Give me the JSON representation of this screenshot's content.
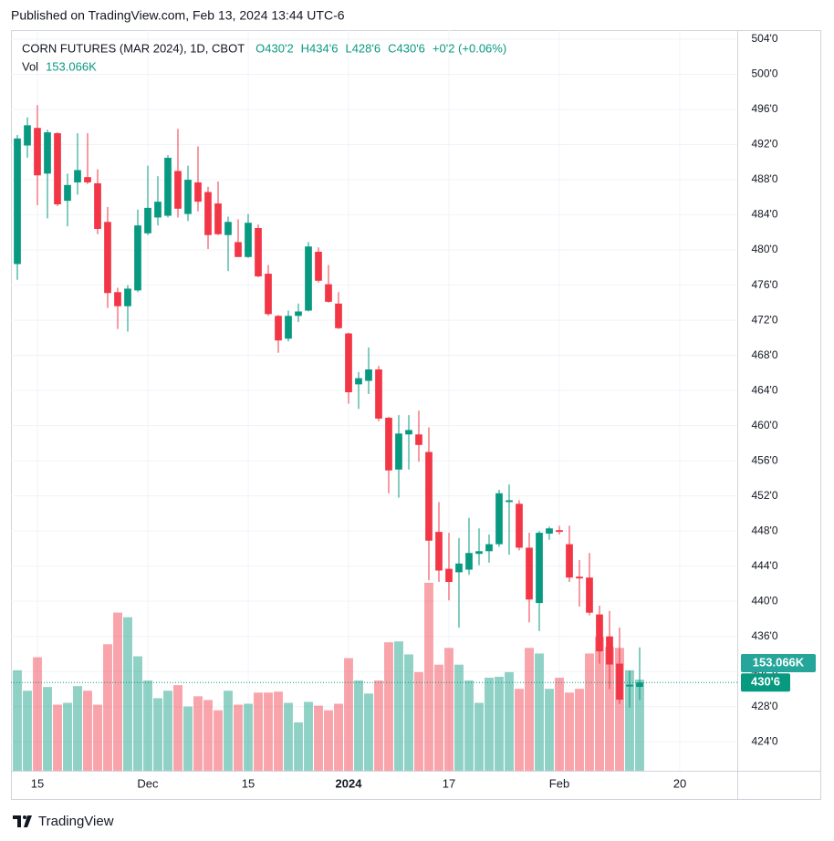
{
  "published": "Published on TradingView.com, Feb 13, 2024 13:44 UTC-6",
  "brand": "TradingView",
  "chart_data": {
    "type": "candlestick",
    "symbol": "CORN FUTURES (MAR 2024), 1D, CBOT",
    "ohlc_legend": [
      "O430'2",
      "H434'6",
      "L428'6",
      "C430'6",
      "+0'2 (+0.06%)"
    ],
    "volume_title": "Vol",
    "last_volume_label": "153.066K",
    "last_close_label": "430'6",
    "up_color": "#089981",
    "down_color": "#f23645",
    "open": [
      478.4,
      491.9,
      493.9,
      488.7,
      493.3,
      485.6,
      487.7,
      488.3,
      487.6,
      483.2,
      475.2,
      473.6,
      475.4,
      481.9,
      483.7,
      483.9,
      489.0,
      484.1,
      487.7,
      486.6,
      485.3,
      481.7,
      480.9,
      479.2,
      482.5,
      477.3,
      472.5,
      469.9,
      472.5,
      473.1,
      479.8,
      476.1,
      473.9,
      470.5,
      464.7,
      465.1,
      466.4,
      460.9,
      455.0,
      459.0,
      459.0,
      457.0,
      447.9,
      443.7,
      443.3,
      443.6,
      445.4,
      445.7,
      446.5,
      451.3,
      451.1,
      446.1,
      439.8,
      447.7,
      448.1,
      446.5,
      442.8,
      442.7,
      438.5,
      436.0,
      432.9,
      430.3,
      430.25
    ],
    "high": [
      493.1,
      495.1,
      496.5,
      493.7,
      493.4,
      488.7,
      493.3,
      493.3,
      489.2,
      484.9,
      475.7,
      476.0,
      484.6,
      489.6,
      488.4,
      490.8,
      493.8,
      489.6,
      491.8,
      487.2,
      487.8,
      483.8,
      483.5,
      484.1,
      482.9,
      478.3,
      472.6,
      473.1,
      473.9,
      480.9,
      480.3,
      478.3,
      475.2,
      470.6,
      466.1,
      468.9,
      466.8,
      461.0,
      461.2,
      461.2,
      461.7,
      459.8,
      451.3,
      447.8,
      447.2,
      449.5,
      448.3,
      447.6,
      452.7,
      453.3,
      451.5,
      447.8,
      448.0,
      448.5,
      448.6,
      448.6,
      444.7,
      445.5,
      439.5,
      438.9,
      437.0,
      432.1,
      434.75
    ],
    "low": [
      476.6,
      490.5,
      485.1,
      483.6,
      485.0,
      482.7,
      486.3,
      487.5,
      481.8,
      473.4,
      471.0,
      470.7,
      475.2,
      481.7,
      482.8,
      483.7,
      483.7,
      483.3,
      484.4,
      480.1,
      481.7,
      477.6,
      479.2,
      479.1,
      476.9,
      472.5,
      468.3,
      469.6,
      471.8,
      473.0,
      476.3,
      474.0,
      471.0,
      462.5,
      461.9,
      463.6,
      460.5,
      452.3,
      451.8,
      455.0,
      455.9,
      442.4,
      442.2,
      440.1,
      437.0,
      443.0,
      444.1,
      444.4,
      446.2,
      445.3,
      445.8,
      437.6,
      436.6,
      447.0,
      447.6,
      442.2,
      439.4,
      438.4,
      432.9,
      430.0,
      428.3,
      427.9,
      428.75
    ],
    "close": [
      492.7,
      494.2,
      488.5,
      493.4,
      485.2,
      487.4,
      489.1,
      487.7,
      482.4,
      475.1,
      473.6,
      475.6,
      482.8,
      484.8,
      485.5,
      490.5,
      484.7,
      488.0,
      485.5,
      481.7,
      481.8,
      483.2,
      479.2,
      483.1,
      477.0,
      472.7,
      469.7,
      472.5,
      473.0,
      480.4,
      476.5,
      474.1,
      471.1,
      463.8,
      465.4,
      466.4,
      460.8,
      454.9,
      459.1,
      459.5,
      457.8,
      446.9,
      443.5,
      442.2,
      444.3,
      445.5,
      445.7,
      446.5,
      452.3,
      451.5,
      446.1,
      440.2,
      447.8,
      448.3,
      447.9,
      442.7,
      442.6,
      438.7,
      434.3,
      432.8,
      428.8,
      430.5,
      430.75
    ],
    "volume": [
      168700,
      134300,
      190600,
      140600,
      110900,
      114000,
      142100,
      134300,
      110900,
      212400,
      265500,
      257700,
      192100,
      151500,
      121800,
      134300,
      143700,
      107800,
      125000,
      118700,
      101500,
      134300,
      110900,
      112500,
      131200,
      131200,
      132800,
      114000,
      81200,
      115600,
      109300,
      101500,
      112500,
      189000,
      151500,
      129600,
      151500,
      215600,
      217100,
      195300,
      165600,
      315500,
      178100,
      206200,
      178100,
      151500,
      114000,
      156200,
      157800,
      165600,
      137500,
      206200,
      196800,
      137500,
      156200,
      131200,
      137500,
      196800,
      224900,
      207700,
      206200,
      168700,
      153066
    ],
    "xlim": [
      -0.636,
      71.727
    ],
    "xticks": [
      {
        "value": 2,
        "label": "15"
      },
      {
        "value": 13,
        "label": "Dec"
      },
      {
        "value": 23,
        "label": "15"
      },
      {
        "value": 33,
        "label": "2024",
        "bold": true
      },
      {
        "value": 43,
        "label": "17"
      },
      {
        "value": 54,
        "label": "Feb"
      },
      {
        "value": 66,
        "label": "20"
      }
    ],
    "ylim": [
      420.7,
      505.04
    ],
    "yticks": [
      {
        "value": 424,
        "label": "424'0"
      },
      {
        "value": 428,
        "label": "428'0"
      },
      {
        "value": 432,
        "label": "432'0"
      },
      {
        "value": 436,
        "label": "436'0"
      },
      {
        "value": 440,
        "label": "440'0"
      },
      {
        "value": 444,
        "label": "444'0"
      },
      {
        "value": 448,
        "label": "448'0"
      },
      {
        "value": 452,
        "label": "452'0"
      },
      {
        "value": 456,
        "label": "456'0"
      },
      {
        "value": 460,
        "label": "460'0"
      },
      {
        "value": 464,
        "label": "464'0"
      },
      {
        "value": 468,
        "label": "468'0"
      },
      {
        "value": 472,
        "label": "472'0"
      },
      {
        "value": 476,
        "label": "476'0"
      },
      {
        "value": 480,
        "label": "480'0"
      },
      {
        "value": 484,
        "label": "484'0"
      },
      {
        "value": 488,
        "label": "488'0"
      },
      {
        "value": 492,
        "label": "492'0"
      },
      {
        "value": 496,
        "label": "496'0"
      },
      {
        "value": 500,
        "label": "500'0"
      },
      {
        "value": 504,
        "label": "504'0"
      }
    ],
    "y2lim": [
      0,
      1243000
    ],
    "grid": true
  }
}
